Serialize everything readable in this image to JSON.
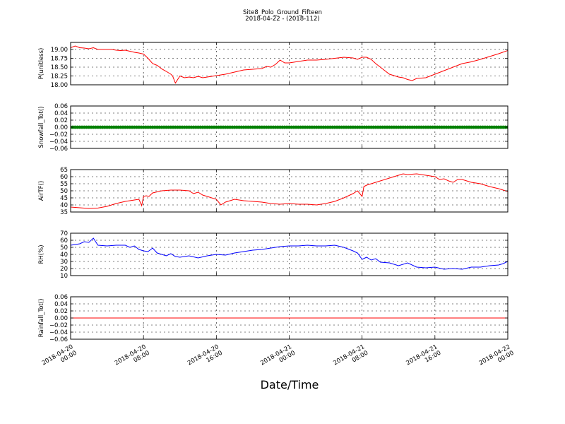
{
  "figure": {
    "title_line1": "Site8_Polo_Ground_Fifteen",
    "title_line2": "2018-04-22 - (2018-112)",
    "xlabel": "Date/Time"
  },
  "x_ticks": [
    {
      "l1": "2018-04-20",
      "l2": "00:00",
      "h": 0
    },
    {
      "l1": "2018-04-20",
      "l2": "08:00",
      "h": 8
    },
    {
      "l1": "2018-04-20",
      "l2": "16:00",
      "h": 16
    },
    {
      "l1": "2018-04-21",
      "l2": "00:00",
      "h": 24
    },
    {
      "l1": "2018-04-21",
      "l2": "08:00",
      "h": 32
    },
    {
      "l1": "2018-04-21",
      "l2": "16:00",
      "h": 40
    },
    {
      "l1": "2018-04-22",
      "l2": "00:00",
      "h": 48
    }
  ],
  "chart_data": [
    {
      "type": "line",
      "ylabel": "P(unitless)",
      "ylim": [
        18.0,
        19.2
      ],
      "yticks": [
        18.0,
        18.25,
        18.5,
        18.75,
        19.0
      ],
      "ytick_labels": [
        "18.00",
        "18.25",
        "18.50",
        "18.75",
        "19.00"
      ],
      "color": "#ff0000",
      "grid": true,
      "x_hours": [
        0,
        0.5,
        1,
        1.5,
        2,
        2.5,
        3,
        3.5,
        4,
        4.5,
        5,
        5.5,
        6,
        6.5,
        7,
        7.5,
        8,
        8.5,
        9,
        9.5,
        10,
        10.5,
        11,
        11.2,
        11.5,
        12,
        12.5,
        13,
        13.5,
        14,
        14.5,
        15,
        15.5,
        16,
        17,
        18,
        19,
        20,
        21,
        21.5,
        22,
        22.5,
        23,
        23.5,
        24,
        25,
        26,
        27,
        28,
        29,
        30,
        31,
        31.5,
        32,
        32.5,
        33,
        33.5,
        34,
        35,
        36,
        36.5,
        37,
        37.5,
        38,
        39,
        40,
        41,
        42,
        43,
        44,
        45,
        46,
        47,
        48
      ],
      "y": [
        19.05,
        19.1,
        19.05,
        19.04,
        19.02,
        19.05,
        19.0,
        19.0,
        19.0,
        19.0,
        18.98,
        18.97,
        18.98,
        18.95,
        18.92,
        18.9,
        18.87,
        18.75,
        18.6,
        18.55,
        18.45,
        18.38,
        18.3,
        18.25,
        18.05,
        18.25,
        18.2,
        18.22,
        18.2,
        18.24,
        18.2,
        18.22,
        18.24,
        18.26,
        18.3,
        18.36,
        18.42,
        18.44,
        18.46,
        18.52,
        18.5,
        18.58,
        18.7,
        18.62,
        18.62,
        18.66,
        18.7,
        18.7,
        18.72,
        18.75,
        18.78,
        18.76,
        18.72,
        18.78,
        18.78,
        18.72,
        18.6,
        18.5,
        18.3,
        18.22,
        18.2,
        18.15,
        18.12,
        18.18,
        18.2,
        18.3,
        18.4,
        18.5,
        18.6,
        18.65,
        18.72,
        18.8,
        18.88,
        18.97
      ]
    },
    {
      "type": "scatter",
      "ylabel": "Snowfall_Tot()",
      "ylim": [
        -0.06,
        0.06
      ],
      "yticks": [
        -0.06,
        -0.04,
        -0.02,
        0.0,
        0.02,
        0.04,
        0.06
      ],
      "ytick_labels": [
        "−0.06",
        "−0.04",
        "−0.02",
        "0.00",
        "0.02",
        "0.04",
        "0.06"
      ],
      "color": "#008000",
      "grid": true,
      "constant_value": 0.0,
      "x_range_hours": [
        0,
        48
      ],
      "interval_minutes": 15
    },
    {
      "type": "line",
      "ylabel": "AirTF()",
      "ylim": [
        35,
        65
      ],
      "yticks": [
        35,
        40,
        45,
        50,
        55,
        60,
        65
      ],
      "ytick_labels": [
        "35",
        "40",
        "45",
        "50",
        "55",
        "60",
        "65"
      ],
      "color": "#ff0000",
      "grid": true,
      "x_hours": [
        0,
        1,
        2,
        3,
        4,
        5,
        6,
        7,
        7.5,
        7.8,
        8,
        8.3,
        8.6,
        9,
        10,
        11,
        12,
        13,
        13.5,
        14,
        14.5,
        15,
        16,
        16.5,
        17,
        17.5,
        18,
        19,
        20,
        21,
        22,
        23,
        24,
        25,
        26,
        27,
        28,
        29,
        30,
        31,
        31.5,
        32,
        32.2,
        32.5,
        33,
        34,
        35,
        36,
        36.5,
        37,
        38,
        39,
        40,
        40.5,
        41,
        41.5,
        42,
        42.5,
        43,
        44,
        45,
        46,
        47,
        48
      ],
      "y": [
        38.5,
        38.0,
        37.5,
        37.8,
        39.0,
        41.0,
        42.5,
        43.5,
        44,
        39.5,
        46,
        46.5,
        46,
        48.5,
        50,
        50.5,
        50.5,
        50,
        48,
        49,
        47,
        46,
        44,
        40,
        42,
        43,
        44,
        43,
        42.5,
        42,
        41,
        40.5,
        41,
        40.5,
        40.5,
        40,
        41,
        42.5,
        45,
        48,
        50,
        46,
        53,
        54,
        55,
        57,
        59,
        61,
        62,
        61.5,
        62,
        61,
        60,
        58,
        58.5,
        57,
        56,
        58,
        58,
        56,
        55,
        53,
        51.5,
        49.5
      ]
    },
    {
      "type": "line",
      "ylabel": "RH(%)",
      "ylim": [
        10,
        70
      ],
      "yticks": [
        10,
        20,
        30,
        40,
        50,
        60,
        70
      ],
      "ytick_labels": [
        "10",
        "20",
        "30",
        "40",
        "50",
        "60",
        "70"
      ],
      "color": "#0000ff",
      "grid": true,
      "x_hours": [
        0,
        1,
        1.5,
        2,
        2.5,
        3,
        4,
        5,
        6,
        6.5,
        7,
        7.5,
        8,
        8.5,
        9,
        9.5,
        10,
        10.5,
        11,
        11.5,
        12,
        13,
        14,
        15,
        16,
        17,
        18,
        19,
        20,
        21,
        22,
        23,
        24,
        25,
        26,
        27,
        28,
        29,
        30,
        31,
        31.5,
        32,
        32.5,
        33,
        33.5,
        34,
        35,
        36,
        37,
        38,
        39,
        40,
        41,
        42,
        43,
        44,
        45,
        46,
        47,
        47.5,
        48
      ],
      "y": [
        53,
        55,
        58,
        57,
        63,
        53,
        52,
        53,
        53,
        50,
        52,
        47,
        45,
        44,
        49,
        42,
        40,
        38,
        41,
        37,
        36,
        38,
        35,
        38,
        40,
        39,
        42,
        44,
        46,
        47,
        49,
        51,
        52,
        52,
        53,
        52,
        52,
        53,
        50,
        45,
        42,
        33,
        36,
        32,
        34,
        29,
        28,
        24,
        28,
        22,
        21,
        22,
        19,
        20,
        19,
        22,
        22,
        24,
        25,
        27,
        30
      ]
    },
    {
      "type": "line",
      "ylabel": "Rainfall_Tot()",
      "ylim": [
        -0.06,
        0.06
      ],
      "yticks": [
        -0.06,
        -0.04,
        -0.02,
        0.0,
        0.02,
        0.04,
        0.06
      ],
      "ytick_labels": [
        "−0.06",
        "−0.04",
        "−0.02",
        "0.00",
        "0.02",
        "0.04",
        "0.06"
      ],
      "color": "#ff0000",
      "grid": true,
      "x_hours": [
        0,
        48
      ],
      "y": [
        0,
        0
      ]
    }
  ]
}
